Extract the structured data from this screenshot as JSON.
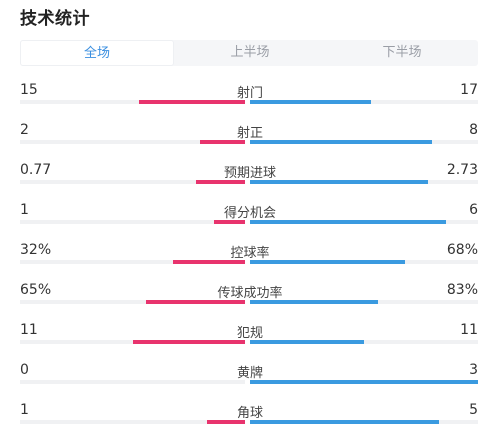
{
  "title": "技术统计",
  "tabs": [
    {
      "label": "全场",
      "active": true
    },
    {
      "label": "上半场",
      "active": false
    },
    {
      "label": "下半场",
      "active": false
    }
  ],
  "colors": {
    "home": "#e8336d",
    "away": "#3a9ae0",
    "accent": "#3b8fe0"
  },
  "stats": [
    {
      "label": "射门",
      "home": "15",
      "away": "17",
      "home_fill": 0.47,
      "away_fill": 0.53
    },
    {
      "label": "射正",
      "home": "2",
      "away": "8",
      "home_fill": 0.2,
      "away_fill": 0.8
    },
    {
      "label": "预期进球",
      "home": "0.77",
      "away": "2.73",
      "home_fill": 0.22,
      "away_fill": 0.78
    },
    {
      "label": "得分机会",
      "home": "1",
      "away": "6",
      "home_fill": 0.14,
      "away_fill": 0.86
    },
    {
      "label": "控球率",
      "home": "32%",
      "away": "68%",
      "home_fill": 0.32,
      "away_fill": 0.68
    },
    {
      "label": "传球成功率",
      "home": "65%",
      "away": "83%",
      "home_fill": 0.44,
      "away_fill": 0.56
    },
    {
      "label": "犯规",
      "home": "11",
      "away": "11",
      "home_fill": 0.5,
      "away_fill": 0.5
    },
    {
      "label": "黄牌",
      "home": "0",
      "away": "3",
      "home_fill": 0.0,
      "away_fill": 1.0
    },
    {
      "label": "角球",
      "home": "1",
      "away": "5",
      "home_fill": 0.17,
      "away_fill": 0.83
    }
  ]
}
